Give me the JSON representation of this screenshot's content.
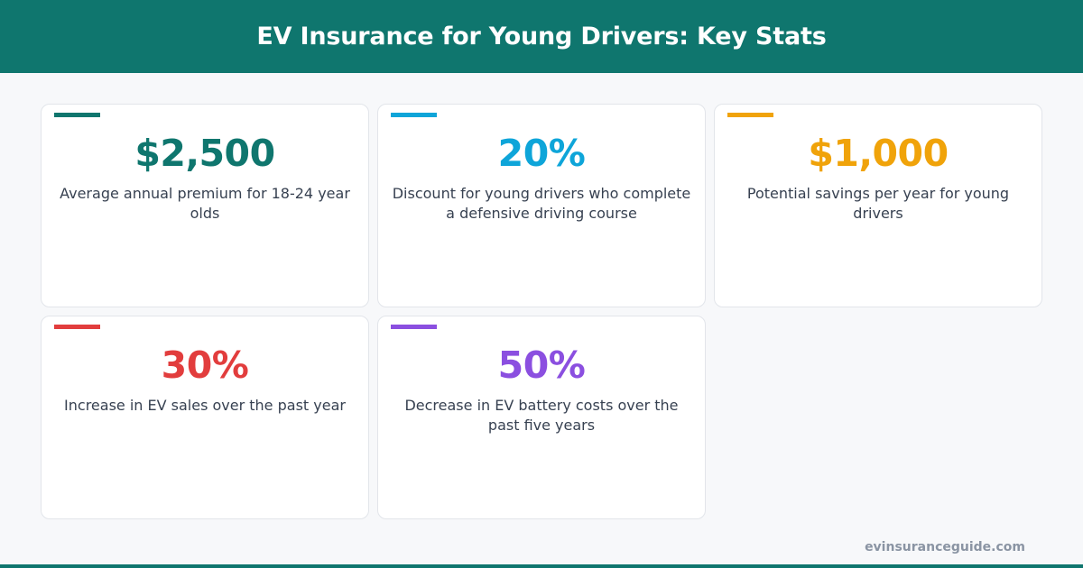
{
  "header": {
    "title": "EV Insurance for Young Drivers: Key Stats"
  },
  "stats": [
    {
      "value": "$2,500",
      "description": "Average annual premium for 18-24 year olds",
      "color": "#0f766e"
    },
    {
      "value": "20%",
      "description": "Discount for young drivers who complete a defensive driving course",
      "color": "#0ea5d9"
    },
    {
      "value": "$1,000",
      "description": "Potential savings per year for young drivers",
      "color": "#f0a30a"
    },
    {
      "value": "30%",
      "description": "Increase in EV sales over the past year",
      "color": "#e23d3d"
    },
    {
      "value": "50%",
      "description": "Decrease in EV battery costs over the past five years",
      "color": "#8b4fe0"
    }
  ],
  "footer": {
    "url": "evinsuranceguide.com"
  }
}
